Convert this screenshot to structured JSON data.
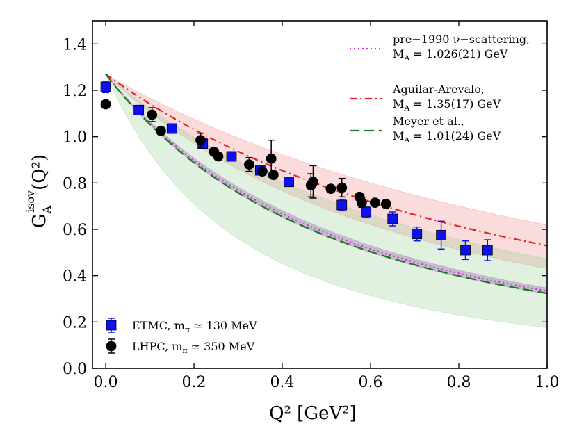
{
  "chart_data": {
    "type": "scatter",
    "xlabel": "Q² [GeV²]",
    "ylabel": "G_A^isov(Q²)",
    "ylabel_main": "G",
    "ylabel_sub": "A",
    "ylabel_sup": "isov",
    "ylabel_arg": "(Q²)",
    "xlim": [
      -0.03,
      1.0
    ],
    "ylim": [
      0.0,
      1.5
    ],
    "x_ticks": [
      "0.0",
      "0.2",
      "0.4",
      "0.6",
      "0.8",
      "1.0"
    ],
    "y_ticks": [
      "0.0",
      "0.2",
      "0.4",
      "0.6",
      "0.8",
      "1.0",
      "1.2",
      "1.4"
    ],
    "grid": false,
    "G0": 1.27,
    "curves": [
      {
        "name": "pre-1990 ν-scattering",
        "label_line1": "pre−1990 ν−scattering,",
        "label_line2": "M_A = 1.026(21) GeV",
        "label_line2_text": "= 1.026(21) GeV",
        "MA": 1.026,
        "MA_err": 0.021,
        "color": "#cc33cc",
        "style": "dotted",
        "band_color": "#b070d0"
      },
      {
        "name": "Aguilar-Arevalo",
        "label_line1": "Aguilar-Arevalo,",
        "label_line2": "M_A = 1.35(17) GeV",
        "label_line2_text": "= 1.35(17) GeV",
        "MA": 1.35,
        "MA_err": 0.17,
        "color": "#e52020",
        "style": "dashdot",
        "band_color": "#f08080"
      },
      {
        "name": "Meyer et al.",
        "label_line1": "Meyer et al.,",
        "label_line2": "M_A = 1.01(24) GeV",
        "label_line2_text": "= 1.01(24) GeV",
        "MA": 1.01,
        "MA_err": 0.24,
        "color": "#1a7a1a",
        "style": "dashed",
        "band_color": "#90cc90"
      }
    ],
    "series": [
      {
        "name": "ETMC, mπ ≃ 130 MeV",
        "label": "ETMC, m",
        "label_sub": "π",
        "label_rest": "≃ 130 MeV",
        "marker": "square",
        "color": "#1010ee",
        "x": [
          0.0,
          0.075,
          0.15,
          0.22,
          0.285,
          0.35,
          0.415,
          0.535,
          0.59,
          0.65,
          0.705,
          0.76,
          0.815,
          0.865
        ],
        "y": [
          1.215,
          1.115,
          1.035,
          0.97,
          0.915,
          0.855,
          0.805,
          0.705,
          0.675,
          0.645,
          0.58,
          0.575,
          0.51,
          0.51
        ],
        "err": [
          0.025,
          0.02,
          0.02,
          0.02,
          0.02,
          0.02,
          0.02,
          0.025,
          0.025,
          0.03,
          0.03,
          0.06,
          0.04,
          0.045
        ]
      },
      {
        "name": "LHPC, mπ ≃ 350 MeV",
        "label": "LHPC, m",
        "label_sub": "π",
        "label_rest": "≃ 350 MeV",
        "marker": "circle",
        "color": "#000000",
        "x": [
          0.0,
          0.105,
          0.125,
          0.215,
          0.245,
          0.255,
          0.325,
          0.355,
          0.375,
          0.38,
          0.465,
          0.47,
          0.51,
          0.535,
          0.575,
          0.58,
          0.61,
          0.635
        ],
        "y": [
          1.14,
          1.095,
          1.025,
          0.985,
          0.935,
          0.915,
          0.88,
          0.85,
          0.905,
          0.835,
          0.79,
          0.805,
          0.775,
          0.78,
          0.74,
          0.715,
          0.715,
          0.71
        ],
        "err": [
          0.0,
          0.03,
          0.0,
          0.03,
          0.0,
          0.0,
          0.03,
          0.0,
          0.08,
          0.0,
          0.05,
          0.07,
          0.0,
          0.04,
          0.0,
          0.02,
          0.0,
          0.0
        ]
      }
    ]
  }
}
